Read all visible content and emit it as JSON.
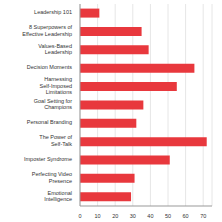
{
  "chart_data": {
    "type": "bar",
    "orientation": "horizontal",
    "categories": [
      "Leadership 101",
      "8 Superpowers of Effective Leadership",
      "Values-Based Leadership",
      "Decision Moments",
      "Harnessing Self-Imposed Limitations",
      "Goal Setting for Champions",
      "Personal Branding",
      "The Power of Self-Talk",
      "Imposter Syndrome",
      "Perfecting Video Presence",
      "Emotional Intelligence"
    ],
    "values": [
      11,
      35,
      39,
      65,
      55,
      36,
      32,
      72,
      51,
      31,
      29
    ],
    "color": "#e8383d",
    "xlim": [
      0,
      75
    ],
    "xticks": [
      0,
      10,
      20,
      30,
      40,
      50,
      60,
      70
    ],
    "grid": true
  }
}
